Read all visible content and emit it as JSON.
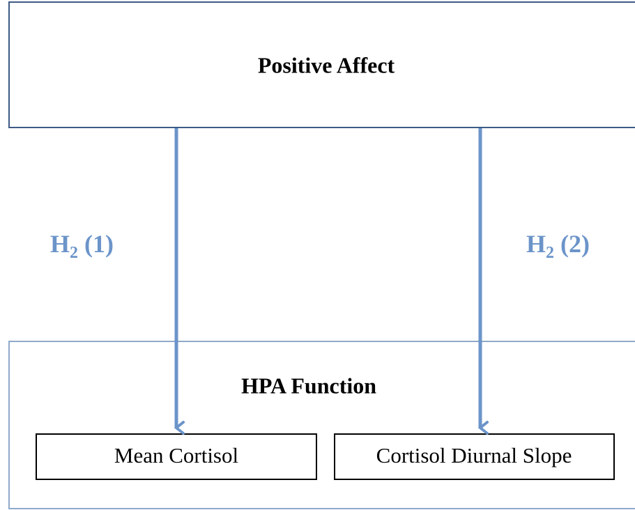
{
  "nodes": [
    {
      "label": "Positive Affect"
    },
    {
      "label": "HPA Function"
    },
    {
      "label": "Mean Cortisol"
    },
    {
      "label": "Cortisol Diurnal Slope"
    }
  ],
  "edges": [
    {
      "main": "H",
      "sub": "2",
      "rest": " (1)"
    },
    {
      "main": "H",
      "sub": "2",
      "rest": " (2)"
    }
  ]
}
